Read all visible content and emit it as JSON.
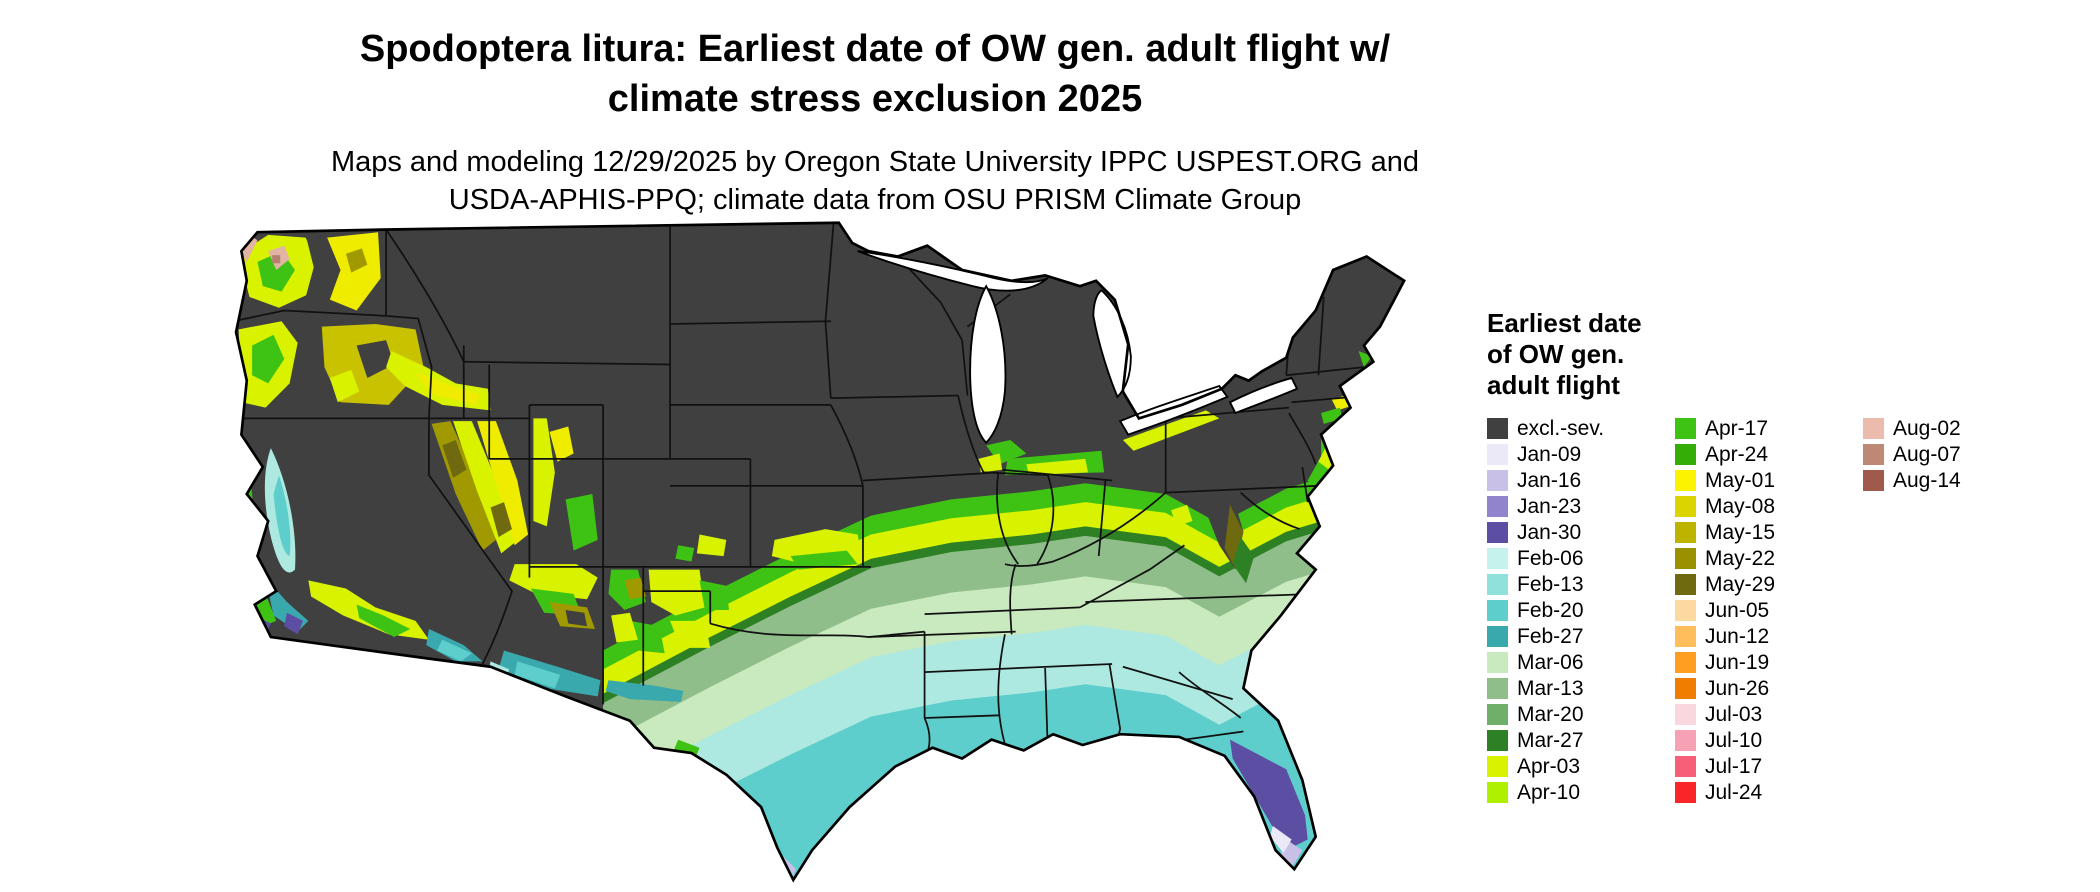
{
  "title": {
    "line1": "Spodoptera litura: Earliest date of OW gen. adult flight w/",
    "line2": "climate stress exclusion 2025"
  },
  "subtitle": {
    "line1": "Maps and modeling 12/29/2025 by Oregon State University IPPC USPEST.ORG and",
    "line2": "USDA-APHIS-PPQ; climate data from OSU PRISM Climate Group"
  },
  "map": {
    "region": "contiguous United States",
    "type": "choropleth raster map",
    "excluded_color": "#404040"
  },
  "legend": {
    "title_lines": [
      "Earliest date",
      "of OW gen.",
      "adult flight"
    ],
    "columns": [
      [
        {
          "label": "excl.-sev.",
          "color": "#404040"
        },
        {
          "label": "Jan-09",
          "color": "#EBE8F7"
        },
        {
          "label": "Jan-16",
          "color": "#C9C0E8"
        },
        {
          "label": "Jan-23",
          "color": "#9183CC"
        },
        {
          "label": "Jan-30",
          "color": "#5C4EA2"
        },
        {
          "label": "Feb-06",
          "color": "#C5F2EC"
        },
        {
          "label": "Feb-13",
          "color": "#8FE1DB"
        },
        {
          "label": "Feb-20",
          "color": "#5ECECC"
        },
        {
          "label": "Feb-27",
          "color": "#3AA9AD"
        },
        {
          "label": "Mar-06",
          "color": "#C9E9BE"
        },
        {
          "label": "Mar-13",
          "color": "#8FBE8A"
        },
        {
          "label": "Mar-20",
          "color": "#6FAF69"
        },
        {
          "label": "Mar-27",
          "color": "#2E8024"
        },
        {
          "label": "Apr-03",
          "color": "#D8F200"
        },
        {
          "label": "Apr-10",
          "color": "#AEF000"
        }
      ],
      [
        {
          "label": "Apr-17",
          "color": "#3EC314"
        },
        {
          "label": "Apr-24",
          "color": "#35AD07"
        },
        {
          "label": "May-01",
          "color": "#FBF300"
        },
        {
          "label": "May-08",
          "color": "#DCD400"
        },
        {
          "label": "May-15",
          "color": "#BDB400"
        },
        {
          "label": "May-22",
          "color": "#9A9100"
        },
        {
          "label": "May-29",
          "color": "#6F6A10"
        },
        {
          "label": "Jun-05",
          "color": "#FDD9A2"
        },
        {
          "label": "Jun-12",
          "color": "#FEBE5C"
        },
        {
          "label": "Jun-19",
          "color": "#FF9E20"
        },
        {
          "label": "Jun-26",
          "color": "#F07D00"
        },
        {
          "label": "Jul-03",
          "color": "#F8D8DE"
        },
        {
          "label": "Jul-10",
          "color": "#F7A2B4"
        },
        {
          "label": "Jul-17",
          "color": "#F75E78"
        },
        {
          "label": "Jul-24",
          "color": "#F92528"
        }
      ],
      [
        {
          "label": "Aug-02",
          "color": "#EBBCAE"
        },
        {
          "label": "Aug-07",
          "color": "#BD8874"
        },
        {
          "label": "Aug-14",
          "color": "#A05A4C"
        }
      ]
    ]
  }
}
